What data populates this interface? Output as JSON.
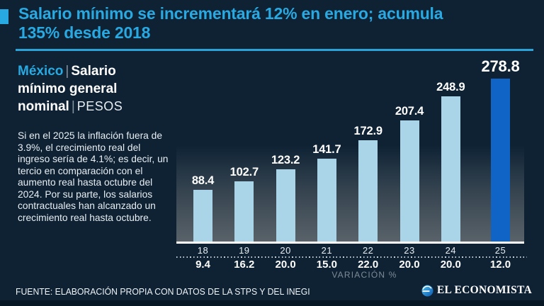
{
  "colors": {
    "background": "#0e2234",
    "accent_cyan": "#28a9e1",
    "bar_light_blue": "#aad5e9",
    "bar_highlight_blue": "#0f64c5",
    "white": "#ffffff",
    "muted_gray": "#7f8c97"
  },
  "header": {
    "title_line1": "Salario mínimo se incrementará 12% en enero; acumula",
    "title_line2": "135% desde 2018"
  },
  "sidebar": {
    "region": "México",
    "separator": "|",
    "series_title": "Salario mínimo general nominal",
    "unit": "PESOS",
    "note": "Si en el 2025 la inflación fuera de 3.9%, el crecimiento real del ingreso sería de 4.1%; es decir, un tercio en comparación con el aumento real hasta octubre del 2024. Por su parte, los salarios contractuales han alcanzado un crecimiento real hasta octubre."
  },
  "chart_data": {
    "type": "bar",
    "title": "México | Salario mínimo general nominal | Pesos",
    "categories": [
      "18",
      "19",
      "20",
      "21",
      "22",
      "23",
      "24",
      "25"
    ],
    "values": [
      88.4,
      102.7,
      123.2,
      141.7,
      172.9,
      207.4,
      248.9,
      278.8
    ],
    "value_labels": [
      "88.4",
      "102.7",
      "123.2",
      "141.7",
      "172.9",
      "207.4",
      "248.9",
      "278.8"
    ],
    "variation_pct": [
      9.4,
      16.2,
      20.0,
      15.0,
      22.0,
      20.0,
      20.0,
      12.0
    ],
    "variation_labels": [
      "9.4",
      "16.2",
      "20.0",
      "15.0",
      "22.0",
      "20.0",
      "20.0",
      "12.0"
    ],
    "axis_label": "VARIACIÓN %",
    "highlight_index": 7,
    "bar_color": "#aad5e9",
    "highlight_color": "#0f64c5",
    "ylim": [
      0,
      300
    ],
    "grid": false,
    "legend": "none"
  },
  "footer": {
    "source": "FUENTE: ELABORACIÓN PROPIA CON DATOS DE LA STPS Y DEL INEGI",
    "brand": "EL ECONOMISTA"
  }
}
